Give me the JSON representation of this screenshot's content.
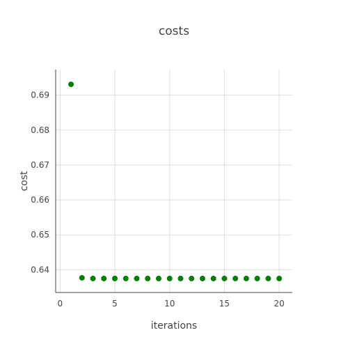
{
  "chart_data": {
    "type": "scatter",
    "title": "costs",
    "xlabel": "iterations",
    "ylabel": "cost",
    "xlim": [
      -0.4,
      21.2
    ],
    "ylim": [
      0.6335,
      0.6973
    ],
    "xticks": [
      0,
      5,
      10,
      15,
      20
    ],
    "yticks": [
      0.64,
      0.65,
      0.66,
      0.67,
      0.68,
      0.69
    ],
    "grid": true,
    "marker_color": "#008000",
    "grid_color": "#dddddd",
    "axis_color": "#444444",
    "series": [
      {
        "x": [
          1,
          2,
          3,
          4,
          5,
          6,
          7,
          8,
          9,
          10,
          11,
          12,
          13,
          14,
          15,
          16,
          17,
          18,
          19,
          20
        ],
        "y": [
          0.6931,
          0.6377,
          0.6375,
          0.6375,
          0.6375,
          0.6375,
          0.6375,
          0.6375,
          0.6375,
          0.6375,
          0.6375,
          0.6375,
          0.6375,
          0.6375,
          0.6375,
          0.6375,
          0.6375,
          0.6375,
          0.6375,
          0.6375
        ]
      }
    ]
  }
}
